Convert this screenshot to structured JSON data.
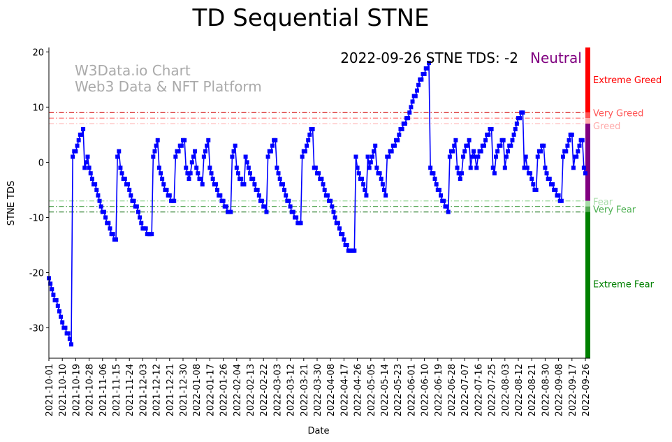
{
  "chart_data": {
    "type": "line",
    "title": "TD Sequential STNE",
    "xlabel": "Date",
    "ylabel": "STNE TDS",
    "ylim": [
      -35.5,
      20.8
    ],
    "yticks": [
      20,
      10,
      0,
      -10,
      -20,
      -30
    ],
    "start_date": "2021-10-01",
    "end_date": "2022-09-26",
    "xticks": [
      "2021-10-01",
      "2021-10-10",
      "2021-10-19",
      "2021-10-28",
      "2021-11-06",
      "2021-11-15",
      "2021-11-24",
      "2021-12-03",
      "2021-12-12",
      "2021-12-21",
      "2021-12-30",
      "2022-01-08",
      "2022-01-17",
      "2022-01-26",
      "2022-02-04",
      "2022-02-13",
      "2022-02-22",
      "2022-03-03",
      "2022-03-12",
      "2022-03-21",
      "2022-03-30",
      "2022-04-08",
      "2022-04-17",
      "2022-04-26",
      "2022-05-05",
      "2022-05-14",
      "2022-05-23",
      "2022-06-01",
      "2022-06-10",
      "2022-06-19",
      "2022-06-28",
      "2022-07-07",
      "2022-07-16",
      "2022-07-25",
      "2022-08-03",
      "2022-08-12",
      "2022-08-21",
      "2022-08-30",
      "2022-09-08",
      "2022-09-17",
      "2022-09-26"
    ],
    "series": [
      {
        "name": "STNE TDS",
        "color": "#0000ff",
        "values": [
          -21,
          -22,
          -23,
          -24,
          -25,
          -25,
          -26,
          -27,
          -28,
          -29,
          -30,
          -30,
          -31,
          -31,
          -32,
          -33,
          1,
          2,
          2,
          3,
          4,
          5,
          5,
          6,
          -1,
          0,
          1,
          -1,
          -2,
          -3,
          -4,
          -4,
          -5,
          -6,
          -7,
          -8,
          -9,
          -9,
          -10,
          -11,
          -11,
          -12,
          -13,
          -13,
          -14,
          -14,
          1,
          2,
          -1,
          -2,
          -3,
          -3,
          -4,
          -4,
          -5,
          -6,
          -7,
          -7,
          -8,
          -8,
          -9,
          -10,
          -11,
          -12,
          -12,
          -12,
          -13,
          -13,
          -13,
          -13,
          1,
          2,
          3,
          4,
          -1,
          -2,
          -3,
          -4,
          -5,
          -5,
          -6,
          -6,
          -7,
          -7,
          -7,
          1,
          2,
          2,
          3,
          3,
          4,
          4,
          -1,
          -2,
          -3,
          -2,
          0,
          1,
          2,
          -1,
          -2,
          -3,
          -3,
          -4,
          1,
          2,
          3,
          4,
          -1,
          -2,
          -3,
          -4,
          -4,
          -5,
          -6,
          -6,
          -7,
          -7,
          -8,
          -8,
          -9,
          -9,
          -9,
          1,
          2,
          3,
          -1,
          -2,
          -3,
          -3,
          -4,
          -4,
          1,
          0,
          -1,
          -2,
          -3,
          -3,
          -4,
          -5,
          -5,
          -6,
          -7,
          -7,
          -8,
          -8,
          -9,
          1,
          2,
          2,
          3,
          4,
          4,
          -1,
          -2,
          -3,
          -4,
          -4,
          -5,
          -6,
          -7,
          -7,
          -8,
          -9,
          -9,
          -10,
          -10,
          -11,
          -11,
          -11,
          1,
          2,
          2,
          3,
          4,
          5,
          6,
          6,
          -1,
          -1,
          -2,
          -2,
          -3,
          -3,
          -4,
          -5,
          -6,
          -6,
          -7,
          -7,
          -8,
          -9,
          -10,
          -11,
          -11,
          -12,
          -13,
          -13,
          -14,
          -15,
          -15,
          -16,
          -16,
          -16,
          -16,
          -16,
          1,
          -1,
          -2,
          -3,
          -3,
          -4,
          -5,
          -6,
          1,
          -1,
          0,
          1,
          2,
          3,
          -1,
          -2,
          -2,
          -3,
          -4,
          -5,
          -6,
          1,
          1,
          2,
          2,
          3,
          3,
          4,
          4,
          5,
          6,
          6,
          7,
          7,
          8,
          8,
          9,
          10,
          11,
          12,
          12,
          13,
          14,
          15,
          15,
          16,
          16,
          17,
          17,
          18,
          -1,
          -2,
          -2,
          -3,
          -4,
          -5,
          -5,
          -6,
          -7,
          -7,
          -8,
          -8,
          -9,
          1,
          2,
          2,
          3,
          4,
          -1,
          -2,
          -3,
          -2,
          1,
          2,
          3,
          3,
          4,
          -1,
          1,
          2,
          1,
          -1,
          1,
          2,
          2,
          3,
          3,
          4,
          5,
          5,
          6,
          6,
          -1,
          -2,
          1,
          2,
          3,
          3,
          4,
          4,
          -1,
          1,
          2,
          3,
          3,
          4,
          5,
          6,
          7,
          8,
          8,
          9,
          9,
          -1,
          1,
          -1,
          -2,
          -2,
          -3,
          -4,
          -5,
          -5,
          1,
          2,
          2,
          3,
          3,
          -1,
          -2,
          -3,
          -3,
          -4,
          -4,
          -5,
          -5,
          -6,
          -6,
          -7,
          -7,
          1,
          2,
          2,
          3,
          4,
          5,
          5,
          -1,
          1,
          1,
          2,
          3,
          4,
          4,
          -1,
          -2
        ]
      }
    ],
    "thresholds": [
      {
        "label": "Very Greed",
        "value": 9,
        "color": "#d62020",
        "bar_color": "#ff5555",
        "label_color": "#ff5555"
      },
      {
        "label": "Greed",
        "value": 8,
        "color": "#ff6a6a",
        "bar_color": "#ffaaaa",
        "label_color": "#ffaaaa"
      },
      {
        "label": "",
        "value": 7,
        "color": "#ffb4b4"
      },
      {
        "label": "Fear",
        "value": -7,
        "color": "#98d898",
        "bar_color": "#a8dca8",
        "label_color": "#a8dca8"
      },
      {
        "label": "Very Fear",
        "value": -8,
        "color": "#5aa85a",
        "bar_color": "#55aa55",
        "label_color": "#4caf50"
      },
      {
        "label": "",
        "value": -9,
        "color": "#006400"
      }
    ],
    "zones": [
      {
        "label": "Extreme Greed",
        "from": 9,
        "to": 20.8,
        "color": "#ff0000",
        "label_value": 15
      },
      {
        "label": "",
        "from": 8,
        "to": 9,
        "color": "#ff5555"
      },
      {
        "label": "",
        "from": 7,
        "to": 8,
        "color": "#ffaaaa"
      },
      {
        "label": "",
        "from": -7,
        "to": 7,
        "color": "#800080"
      },
      {
        "label": "",
        "from": -8,
        "to": -7,
        "color": "#a8dca8"
      },
      {
        "label": "",
        "from": -9,
        "to": -8,
        "color": "#55aa55"
      },
      {
        "label": "Extreme Fear",
        "from": -35.5,
        "to": -9,
        "color": "#008000",
        "label_value": -22
      }
    ],
    "annotation": {
      "text": "2022-09-26 STNE TDS: -2",
      "state": "Neutral",
      "state_color": "#800080"
    },
    "watermark": [
      "W3Data.io Chart",
      "Web3 Data & NFT Platform"
    ],
    "grid": false,
    "legend": "none"
  }
}
